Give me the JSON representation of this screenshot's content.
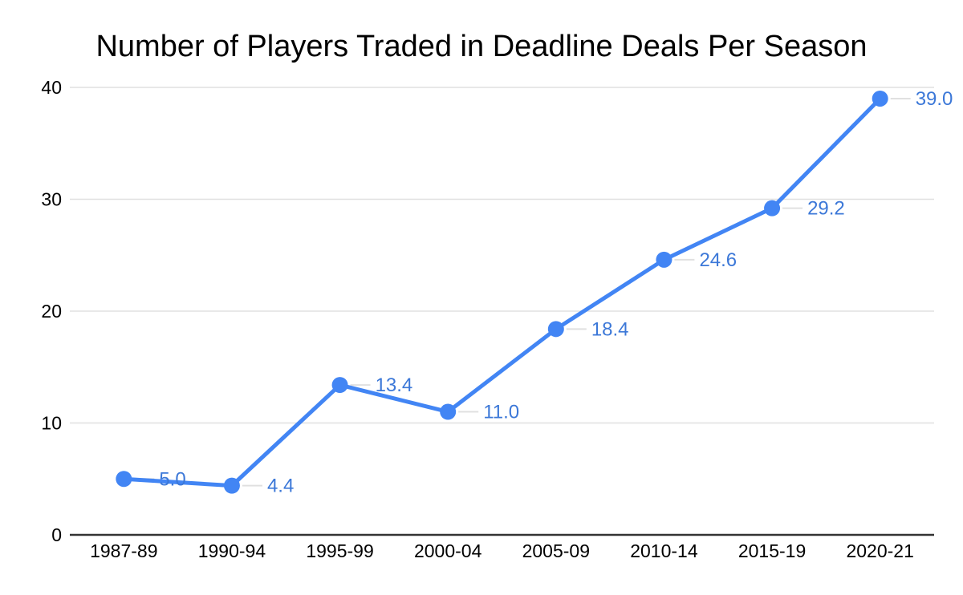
{
  "chart_data": {
    "type": "line",
    "title": "Number of Players Traded in Deadline Deals Per Season",
    "categories": [
      "1987-89",
      "1990-94",
      "1995-99",
      "2000-04",
      "2005-09",
      "2010-14",
      "2015-19",
      "2020-21"
    ],
    "values": [
      5.0,
      4.4,
      13.4,
      11.0,
      18.4,
      24.6,
      29.2,
      39.0
    ],
    "value_labels": [
      "5.0",
      "4.4",
      "13.4",
      "11.0",
      "18.4",
      "24.6",
      "29.2",
      "39.0"
    ],
    "xlabel": "",
    "ylabel": "",
    "ylim": [
      0,
      40
    ],
    "yticks": [
      0,
      10,
      20,
      30,
      40
    ],
    "ytick_labels": [
      "0",
      "10",
      "20",
      "30",
      "40"
    ],
    "grid": true,
    "legend_position": "none",
    "colors": {
      "series_line": "#4285f4",
      "data_point": "#4285f4",
      "data_label": "#3c78d8",
      "gridline": "#e0e0e0",
      "leader_line": "#e0e0e0",
      "axis_line": "#333333",
      "tick_text": "#000000",
      "title_text": "#000000",
      "background": "#ffffff"
    }
  }
}
